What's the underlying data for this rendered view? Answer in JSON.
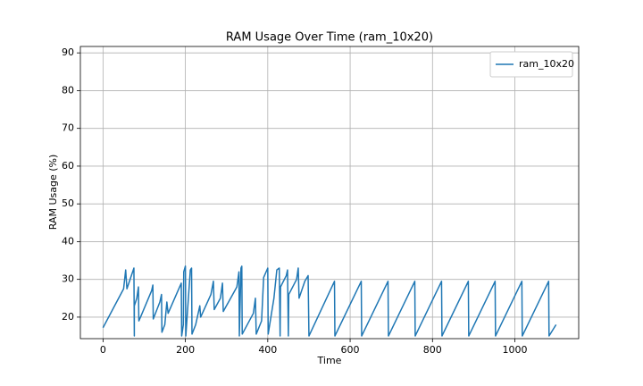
{
  "chart_data": {
    "type": "line",
    "title": "RAM Usage Over Time (ram_10x20)",
    "x_label": "Time",
    "y_label": "RAM Usage (%)",
    "series": [
      {
        "name": "ram_10x20",
        "color": "#1f77b4",
        "x": [
          0,
          50,
          55,
          58,
          75,
          76,
          76,
          82,
          86,
          87,
          93,
          118,
          121,
          122,
          138,
          142,
          143,
          150,
          155,
          158,
          180,
          190,
          191,
          195,
          196,
          200,
          201,
          212,
          215,
          216,
          225,
          235,
          237,
          262,
          268,
          270,
          285,
          290,
          292,
          325,
          330,
          331,
          335,
          337,
          338,
          365,
          370,
          372,
          385,
          390,
          400,
          401,
          415,
          422,
          428,
          430,
          431,
          445,
          448,
          450,
          451,
          470,
          474,
          476,
          490,
          498,
          500,
          562,
          563,
          627,
          628,
          692,
          693,
          757,
          758,
          822,
          823,
          887,
          888,
          952,
          953,
          1017,
          1018,
          1082,
          1083,
          1100
        ],
        "values": [
          17.2,
          27.5,
          32.5,
          27.5,
          33,
          15,
          23,
          25,
          28,
          19,
          20.5,
          27,
          28.5,
          19.5,
          24,
          26,
          16,
          18,
          24,
          21,
          26.5,
          29,
          15,
          18,
          32,
          33.5,
          15,
          32.5,
          33,
          15.5,
          18,
          23,
          20,
          26,
          29.5,
          22,
          25,
          29,
          21.5,
          28,
          32,
          15,
          33,
          33.5,
          15.5,
          21,
          25,
          15.5,
          19,
          30.5,
          33,
          15.5,
          25,
          32.5,
          33,
          15,
          28,
          31,
          32.5,
          15,
          26,
          30,
          33,
          25,
          29.5,
          31,
          15,
          29.5,
          15,
          29.5,
          15,
          29.5,
          15,
          29.5,
          15,
          29.5,
          15,
          29.5,
          15,
          29.5,
          15,
          29.5,
          15,
          29.5,
          15,
          18
        ]
      }
    ],
    "xlim": [
      -55,
      1155
    ],
    "ylim": [
      14.3,
      91.7
    ],
    "xticks": [
      0,
      200,
      400,
      600,
      800,
      1000
    ],
    "yticks": [
      20,
      30,
      40,
      50,
      60,
      70,
      80,
      90
    ],
    "grid": true,
    "legend": "upper right"
  }
}
